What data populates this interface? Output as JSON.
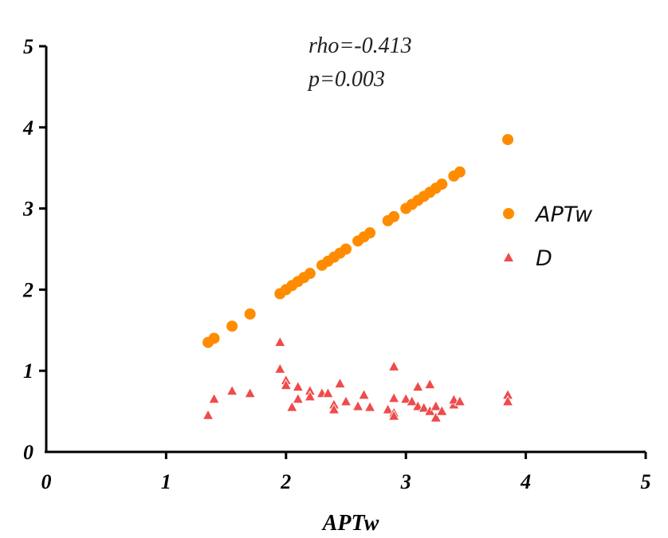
{
  "chart_data": {
    "type": "scatter",
    "title": "",
    "xlabel": "APTw",
    "ylabel": "",
    "xlim": [
      0,
      5
    ],
    "ylim": [
      0,
      5
    ],
    "xticks": [
      "0",
      "1",
      "2",
      "3",
      "4",
      "5"
    ],
    "yticks": [
      "0",
      "1",
      "2",
      "3",
      "4",
      "5"
    ],
    "annotations": [
      "rho=-0.413",
      "p=0.003"
    ],
    "grid": false,
    "legend_position": "right",
    "series": [
      {
        "name": "APTw",
        "marker": "circle",
        "color": "#ff8c00",
        "points": [
          [
            1.35,
            1.35
          ],
          [
            1.4,
            1.4
          ],
          [
            1.55,
            1.55
          ],
          [
            1.7,
            1.7
          ],
          [
            1.95,
            1.95
          ],
          [
            2.0,
            2.0
          ],
          [
            2.05,
            2.05
          ],
          [
            2.1,
            2.1
          ],
          [
            2.15,
            2.15
          ],
          [
            2.2,
            2.2
          ],
          [
            2.3,
            2.3
          ],
          [
            2.35,
            2.35
          ],
          [
            2.4,
            2.4
          ],
          [
            2.45,
            2.45
          ],
          [
            2.5,
            2.5
          ],
          [
            2.6,
            2.6
          ],
          [
            2.65,
            2.65
          ],
          [
            2.7,
            2.7
          ],
          [
            2.85,
            2.85
          ],
          [
            2.9,
            2.9
          ],
          [
            3.0,
            3.0
          ],
          [
            3.05,
            3.05
          ],
          [
            3.1,
            3.1
          ],
          [
            3.15,
            3.15
          ],
          [
            3.2,
            3.2
          ],
          [
            3.25,
            3.25
          ],
          [
            3.3,
            3.3
          ],
          [
            3.4,
            3.4
          ],
          [
            3.45,
            3.45
          ],
          [
            3.85,
            3.85
          ]
        ]
      },
      {
        "name": "D",
        "marker": "triangle",
        "color": "#ee4b4b",
        "points": [
          [
            1.35,
            0.45
          ],
          [
            1.4,
            0.65
          ],
          [
            1.55,
            0.75
          ],
          [
            1.7,
            0.72
          ],
          [
            1.95,
            1.35
          ],
          [
            1.95,
            1.02
          ],
          [
            2.0,
            0.88
          ],
          [
            2.0,
            0.82
          ],
          [
            2.05,
            0.55
          ],
          [
            2.1,
            0.8
          ],
          [
            2.1,
            0.65
          ],
          [
            2.2,
            0.75
          ],
          [
            2.2,
            0.68
          ],
          [
            2.3,
            0.72
          ],
          [
            2.35,
            0.72
          ],
          [
            2.4,
            0.58
          ],
          [
            2.4,
            0.52
          ],
          [
            2.45,
            0.84
          ],
          [
            2.5,
            0.62
          ],
          [
            2.6,
            0.56
          ],
          [
            2.65,
            0.7
          ],
          [
            2.7,
            0.55
          ],
          [
            2.85,
            0.52
          ],
          [
            2.9,
            0.48
          ],
          [
            2.9,
            0.44
          ],
          [
            2.9,
            1.05
          ],
          [
            2.9,
            0.66
          ],
          [
            3.0,
            0.65
          ],
          [
            3.05,
            0.62
          ],
          [
            3.1,
            0.8
          ],
          [
            3.1,
            0.56
          ],
          [
            3.15,
            0.54
          ],
          [
            3.2,
            0.83
          ],
          [
            3.2,
            0.5
          ],
          [
            3.25,
            0.42
          ],
          [
            3.25,
            0.56
          ],
          [
            3.3,
            0.5
          ],
          [
            3.4,
            0.58
          ],
          [
            3.4,
            0.64
          ],
          [
            3.45,
            0.62
          ],
          [
            3.85,
            0.7
          ],
          [
            3.85,
            0.62
          ]
        ]
      }
    ]
  }
}
